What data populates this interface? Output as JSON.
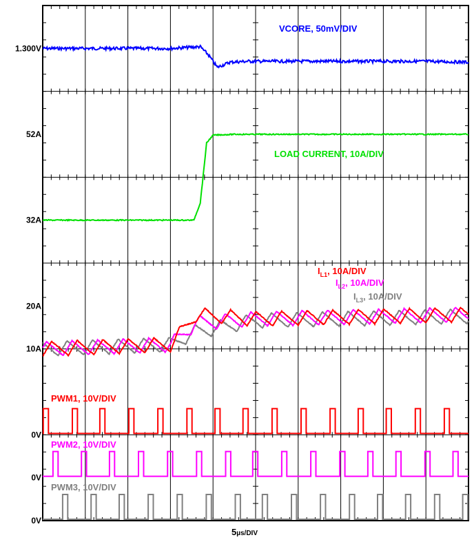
{
  "chart_data": {
    "type": "line",
    "title": "",
    "xlabel_prefix": "5",
    "xlabel_unit": "µs/DIV",
    "x_divisions": 10,
    "y_divisions": 12,
    "grid": true,
    "y_markers": [
      {
        "label": "1.300V",
        "div": 0.5
      },
      {
        "label": "52A",
        "div": 1.5
      },
      {
        "label": "32A",
        "div": 2.5
      },
      {
        "label": "20A",
        "div": 3.5
      },
      {
        "label": "10A",
        "div": 4.0
      },
      {
        "label": "0V",
        "div": 5.0
      },
      {
        "label": "0V",
        "div": 5.5
      },
      {
        "label": "0V",
        "div": 6.0
      }
    ],
    "series": [
      {
        "name": "VCORE, 50mV/DIV",
        "color": "#0000ff",
        "x": [
          0,
          1.0,
          2.0,
          3.0,
          3.7,
          3.9,
          4.1,
          4.4,
          4.8,
          5.0,
          6.0,
          7.0,
          8.0,
          9.0,
          10.0
        ],
        "y": [
          0.5,
          0.5,
          0.5,
          0.5,
          0.48,
          0.58,
          0.72,
          0.66,
          0.65,
          0.65,
          0.65,
          0.65,
          0.65,
          0.65,
          0.66
        ]
      },
      {
        "name": "LOAD CURRENT, 10A/DIV",
        "color": "#00e000",
        "x": [
          0,
          1.0,
          2.0,
          3.0,
          3.55,
          3.7,
          3.85,
          4.0,
          4.5,
          5.0,
          6.0,
          7.0,
          8.0,
          9.0,
          10.0
        ],
        "y": [
          2.5,
          2.5,
          2.5,
          2.5,
          2.5,
          2.3,
          1.6,
          1.51,
          1.5,
          1.5,
          1.5,
          1.5,
          1.5,
          1.5,
          1.5
        ]
      },
      {
        "name_main": "I",
        "name_sub": "L1",
        "name_rest": ", 10A/DIV",
        "color": "#ff0000",
        "x": [
          0,
          3.0,
          3.6,
          5.0,
          10.0
        ],
        "y": [
          4.0,
          3.95,
          3.6,
          3.65,
          3.6
        ],
        "ripple": 0.17,
        "period": 0.6,
        "phase": 0.0
      },
      {
        "name_main": "I",
        "name_sub": "L2",
        "name_rest": ", 10A/DIV",
        "color": "#ff00ff",
        "x": [
          0,
          3.0,
          3.6,
          5.0,
          10.0
        ],
        "y": [
          4.0,
          3.95,
          3.7,
          3.65,
          3.6
        ],
        "ripple": 0.17,
        "period": 0.6,
        "phase": 0.2
      },
      {
        "name_main": "I",
        "name_sub": "L3",
        "name_rest": ", 10A/DIV",
        "color": "#808080",
        "x": [
          0,
          3.0,
          3.6,
          5.0,
          10.0
        ],
        "y": [
          4.0,
          3.95,
          3.8,
          3.67,
          3.62
        ],
        "ripple": 0.17,
        "period": 0.6,
        "phase": 0.4
      },
      {
        "name": "PWM1, 10V/DIV",
        "color": "#ff0000",
        "baseline": 5.0,
        "pulse_starts": [
          0.03,
          1.53,
          2.95,
          4.45,
          5.95,
          7.45,
          8.9,
          10.35,
          11.85,
          13.35,
          14.85,
          16.3,
          17.75,
          19.25,
          20.75,
          22.2
        ]
      },
      {
        "name": "PWM2, 10V/DIV",
        "color": "#ff00ff",
        "baseline": 5.5,
        "pulse_starts": [
          0.53,
          2.0,
          3.45,
          4.95,
          6.45,
          7.95,
          9.45,
          10.85,
          12.35,
          13.85,
          15.35,
          16.8,
          18.25,
          19.75,
          21.2
        ]
      },
      {
        "name": "PWM3, 10V/DIV",
        "color": "#808080",
        "baseline": 6.0,
        "pulse_starts": [
          1.03,
          2.5,
          3.95,
          5.45,
          6.95,
          8.45,
          9.95,
          11.35,
          12.85,
          14.35,
          15.85,
          17.3,
          18.75,
          20.25,
          21.7
        ]
      }
    ]
  }
}
